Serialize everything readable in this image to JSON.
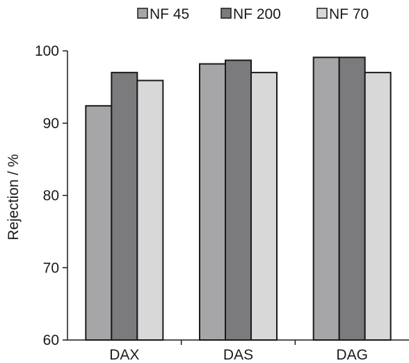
{
  "chart_data": {
    "type": "bar",
    "title": "",
    "xlabel": "",
    "ylabel": "Rejection / %",
    "ylim": [
      60,
      100
    ],
    "yticks": [
      60,
      70,
      80,
      90,
      100
    ],
    "categories": [
      "DAX",
      "DAS",
      "DAG"
    ],
    "series": [
      {
        "name": "NF 45",
        "color": "#a6a6a8",
        "values": [
          92.4,
          98.2,
          99.1
        ]
      },
      {
        "name": "NF 200",
        "color": "#7b7b7d",
        "values": [
          97.0,
          98.7,
          99.1
        ]
      },
      {
        "name": "NF 70",
        "color": "#d8d8d8",
        "values": [
          95.9,
          97.0,
          97.0
        ]
      }
    ],
    "legend_position": "top-right",
    "grid": false
  }
}
